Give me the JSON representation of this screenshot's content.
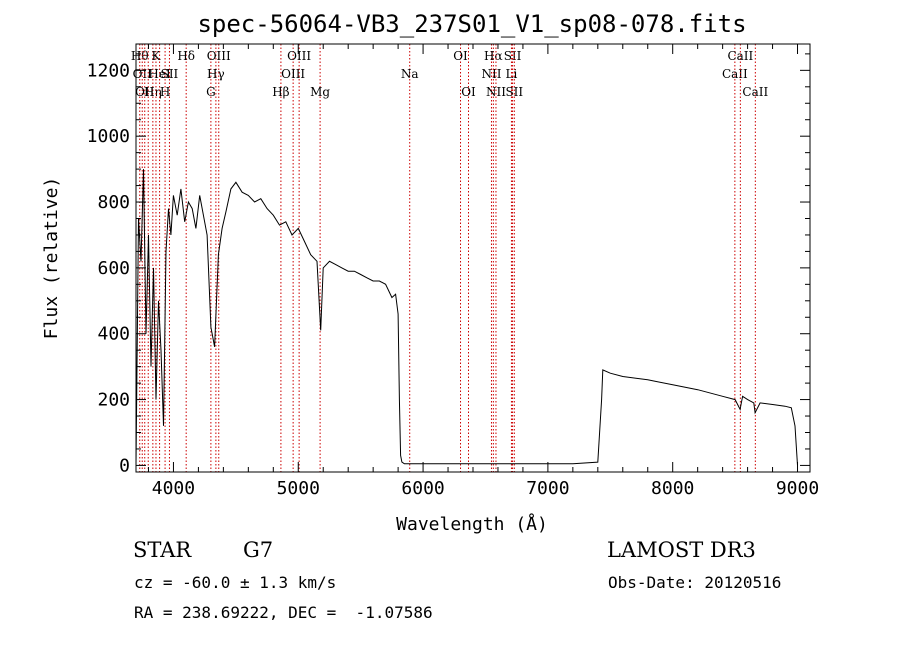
{
  "chart_data": {
    "type": "line",
    "title": "spec-56064-VB3_237S01_V1_sp08-078.fits",
    "xlabel": "Wavelength (Å)",
    "ylabel": "Flux (relative)",
    "xlim": [
      3700,
      9100
    ],
    "ylim": [
      -20,
      1280
    ],
    "xticks": [
      4000,
      5000,
      6000,
      7000,
      8000,
      9000
    ],
    "yticks": [
      0,
      200,
      400,
      600,
      800,
      1000,
      1200
    ],
    "grid": false,
    "series": [
      {
        "values_x": [
          3700,
          3720,
          3740,
          3760,
          3780,
          3800,
          3820,
          3840,
          3860,
          3880,
          3900,
          3920,
          3940,
          3960,
          3980,
          4000,
          4030,
          4060,
          4090,
          4120,
          4150,
          4180,
          4210,
          4240,
          4270,
          4300,
          4330,
          4360,
          4390,
          4420,
          4460,
          4500,
          4550,
          4600,
          4650,
          4700,
          4750,
          4800,
          4850,
          4900,
          4950,
          5000,
          5050,
          5100,
          5150,
          5180,
          5200,
          5250,
          5300,
          5350,
          5400,
          5450,
          5500,
          5550,
          5600,
          5650,
          5700,
          5750,
          5780,
          5800,
          5810,
          5820,
          5830,
          5850,
          5900,
          6000,
          6200,
          6500,
          6800,
          7000,
          7200,
          7400,
          7430,
          7440,
          7500,
          7600,
          7800,
          8000,
          8200,
          8400,
          8500,
          8540,
          8560,
          8600,
          8650,
          8660,
          8700,
          8800,
          8900,
          8950,
          8980,
          9000
        ],
        "values_y": [
          0,
          750,
          620,
          900,
          400,
          700,
          300,
          600,
          200,
          500,
          350,
          120,
          650,
          780,
          700,
          820,
          760,
          840,
          740,
          800,
          780,
          720,
          820,
          760,
          700,
          420,
          360,
          640,
          720,
          770,
          840,
          860,
          830,
          820,
          800,
          810,
          780,
          760,
          730,
          740,
          700,
          720,
          680,
          640,
          620,
          410,
          600,
          620,
          610,
          600,
          590,
          590,
          580,
          570,
          560,
          560,
          550,
          510,
          520,
          460,
          200,
          30,
          10,
          5,
          5,
          5,
          5,
          5,
          5,
          5,
          5,
          10,
          200,
          290,
          280,
          270,
          260,
          245,
          230,
          210,
          200,
          170,
          210,
          200,
          190,
          160,
          190,
          185,
          180,
          175,
          120,
          0
        ]
      }
    ],
    "lines": [
      {
        "x": 3730,
        "labels": [
          "Hθ"
        ],
        "row": 0
      },
      {
        "x": 3750,
        "labels": [
          "OII"
        ],
        "row": 1
      },
      {
        "x": 3770,
        "labels": [
          "OII"
        ],
        "row": 2
      },
      {
        "x": 3798,
        "labels": [
          ""
        ],
        "row": 0
      },
      {
        "x": 3835,
        "labels": [
          "Hη"
        ],
        "row": 2
      },
      {
        "x": 3860,
        "labels": [
          "K"
        ],
        "row": 0
      },
      {
        "x": 3889,
        "labels": [
          "HeI"
        ],
        "row": 1
      },
      {
        "x": 3933,
        "labels": [
          "H"
        ],
        "row": 2
      },
      {
        "x": 3968,
        "labels": [
          "SII"
        ],
        "row": 1
      },
      {
        "x": 4102,
        "labels": [
          "Hδ"
        ],
        "row": 0
      },
      {
        "x": 4300,
        "labels": [
          "G"
        ],
        "row": 2
      },
      {
        "x": 4340,
        "labels": [
          "Hγ"
        ],
        "row": 1
      },
      {
        "x": 4363,
        "labels": [
          "OIII"
        ],
        "row": 0
      },
      {
        "x": 4861,
        "labels": [
          "Hβ"
        ],
        "row": 2
      },
      {
        "x": 4959,
        "labels": [
          "OIII"
        ],
        "row": 1
      },
      {
        "x": 5007,
        "labels": [
          "OIII"
        ],
        "row": 0
      },
      {
        "x": 5175,
        "labels": [
          "Mg"
        ],
        "row": 2
      },
      {
        "x": 5893,
        "labels": [
          "Na"
        ],
        "row": 1
      },
      {
        "x": 6300,
        "labels": [
          "OI"
        ],
        "row": 0
      },
      {
        "x": 6364,
        "labels": [
          "OI"
        ],
        "row": 2
      },
      {
        "x": 6548,
        "labels": [
          "NII"
        ],
        "row": 1
      },
      {
        "x": 6563,
        "labels": [
          "Hα"
        ],
        "row": 0
      },
      {
        "x": 6584,
        "labels": [
          "NII"
        ],
        "row": 2
      },
      {
        "x": 6708,
        "labels": [
          "Li"
        ],
        "row": 1
      },
      {
        "x": 6717,
        "labels": [
          "SII"
        ],
        "row": 0
      },
      {
        "x": 6731,
        "labels": [
          "SII"
        ],
        "row": 2
      },
      {
        "x": 8498,
        "labels": [
          "CaII"
        ],
        "row": 1
      },
      {
        "x": 8542,
        "labels": [
          "CaII"
        ],
        "row": 0
      },
      {
        "x": 8662,
        "labels": [
          "CaII"
        ],
        "row": 2
      }
    ],
    "line_color": "#cc0000",
    "spectrum_color": "#000000"
  },
  "footer": {
    "object": "STAR",
    "subclass": "G7",
    "survey": "LAMOST DR3",
    "cz": "cz = -60.0 ± 1.3 km/s",
    "obs_date": "Obs-Date: 20120516",
    "coords": "RA = 238.69222, DEC =  -1.07586"
  }
}
